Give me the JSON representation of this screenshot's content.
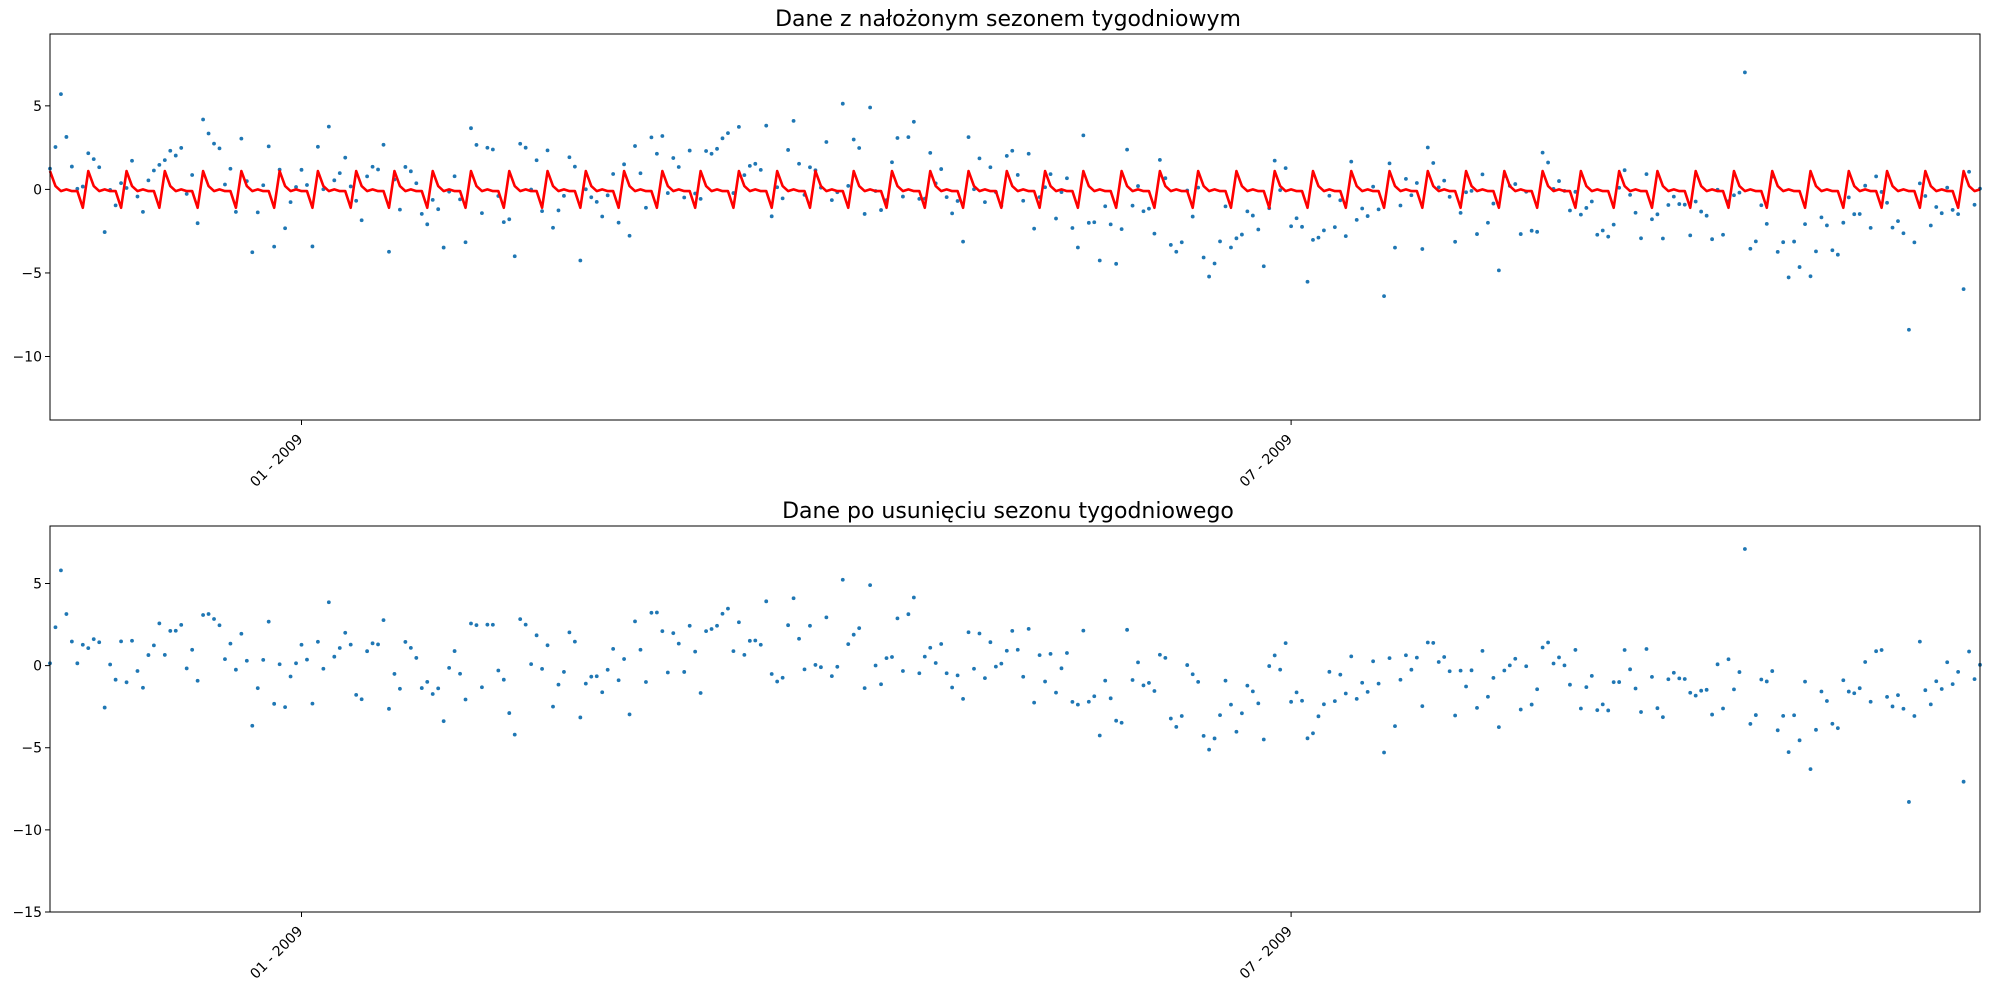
{
  "chart_data": [
    {
      "type": "scatter",
      "title": "Dane z nałożonym sezonem tygodniowym",
      "xlabel": "",
      "ylabel": "",
      "x_ticks": [
        "01 - 2009",
        "07 - 2009"
      ],
      "y_ticks": [
        5,
        0,
        -5,
        -10
      ],
      "ylim": [
        -13.8,
        9.3
      ],
      "grid": false,
      "series": [
        {
          "kind": "scatter",
          "color": "#1f77b4",
          "points_per_day": true,
          "note_range_days": "~mid-Nov 2008 to ~early Nov 2009"
        },
        {
          "kind": "line",
          "color": "#ff0000",
          "weekly_pattern": [
            1.1,
            0.2,
            -0.1,
            0.0,
            -0.1,
            -0.1,
            -1.1
          ]
        }
      ]
    },
    {
      "type": "scatter",
      "title": "Dane po usunięciu sezonu tygodniowego",
      "xlabel": "",
      "ylabel": "",
      "x_ticks": [
        "01 - 2009",
        "07 - 2009"
      ],
      "y_ticks": [
        5,
        0,
        -5,
        -10,
        -15
      ],
      "ylim": [
        -15,
        8.5
      ],
      "grid": false,
      "series": [
        {
          "kind": "scatter",
          "color": "#1f77b4"
        }
      ]
    }
  ]
}
